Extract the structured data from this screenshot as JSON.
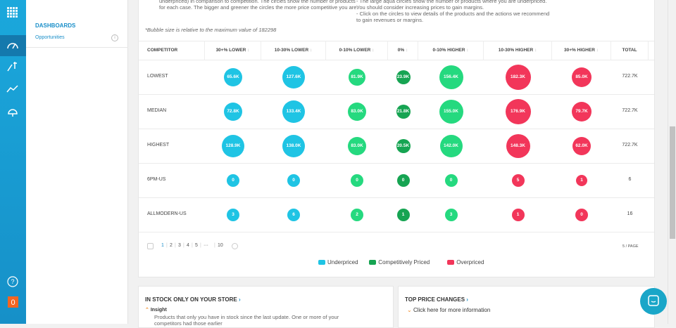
{
  "sidebar": {
    "help": "?",
    "badge": "0"
  },
  "nav": {
    "section": "DASHBOARDS",
    "items": [
      "Opportunities"
    ]
  },
  "intro": {
    "left": [
      "underpriced) in comparison to competition. The circles show the number of products",
      "for each case. The bigger and greener the circles the more price competitive you are."
    ],
    "right": [
      "- The large aqua circles show the number of products where you are underpriced.",
      "You should consider increasing prices to gain margins.",
      "- Click on the circles to view details of the products and the actions we recommend",
      "to gain revenues or margins."
    ],
    "note": "*Bubble size is relative to the maximum value of 182298"
  },
  "table": {
    "headers": [
      "COMPETITOR",
      "30+% LOWER",
      "10-30% LOWER",
      "0-10% LOWER",
      "0%",
      "0-10% HIGHER",
      "10-30% HIGHER",
      "30+% HIGHER",
      "TOTAL"
    ],
    "rows": [
      {
        "label": "LOWEST",
        "cells": [
          "65.6K",
          "127.6K",
          "81.9K",
          "23.9K",
          "156.4K",
          "182.3K",
          "85.0K"
        ],
        "total": "722.7K"
      },
      {
        "label": "MEDIAN",
        "cells": [
          "72.8K",
          "133.4K",
          "83.0K",
          "21.8K",
          "155.0K",
          "176.9K",
          "79.7K"
        ],
        "total": "722.7K"
      },
      {
        "label": "HIGHEST",
        "cells": [
          "128.9K",
          "138.0K",
          "83.0K",
          "20.5K",
          "142.0K",
          "148.3K",
          "62.0K"
        ],
        "total": "722.7K"
      },
      {
        "label": "6PM-US",
        "cells": [
          "0",
          "0",
          "0",
          "0",
          "0",
          "5",
          "1"
        ],
        "total": "6"
      },
      {
        "label": "ALLMODERN-US",
        "cells": [
          "3",
          "6",
          "2",
          "1",
          "3",
          "1",
          "0"
        ],
        "total": "16"
      }
    ]
  },
  "pagination": {
    "pages": [
      "1",
      "2",
      "3",
      "4",
      "5",
      "···",
      "10"
    ],
    "page_size": "5 / PAGE"
  },
  "legend": [
    "Underpriced",
    "Competitively Priced",
    "Overpriced"
  ],
  "cards": [
    {
      "title": "IN STOCK ONLY ON YOUR STORE",
      "toggle": "Insight",
      "text": [
        "Products that only you have in stock since the last update. One or more of your",
        "competitors had those earlier"
      ]
    },
    {
      "title": "TOP PRICE CHANGES",
      "toggle": "Click here for more information"
    }
  ]
}
